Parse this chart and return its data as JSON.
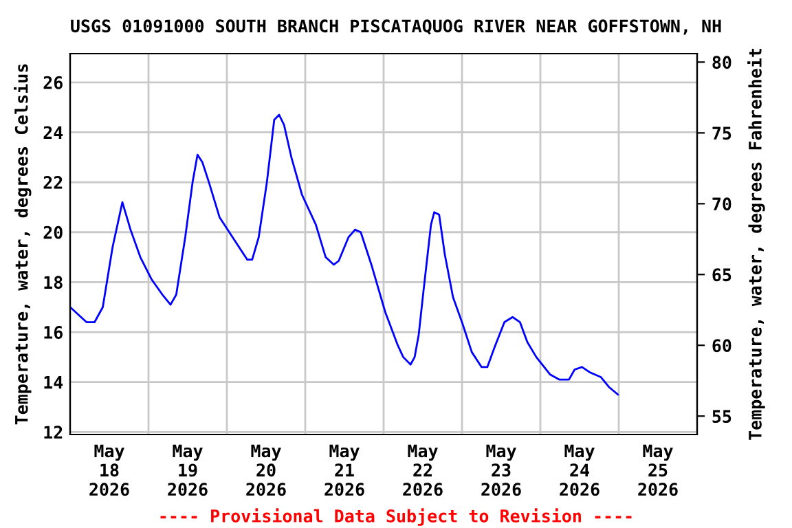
{
  "chart_data": {
    "type": "line",
    "title": "USGS 01091000 SOUTH BRANCH PISCATAQUOG RIVER NEAR GOFFSTOWN, NH",
    "ylabel": "Temperature, water, degrees Celsius",
    "y2label": "Temperature, water, degrees Fahrenheit",
    "annotations": [
      "---- Provisional Data Subject to Revision ----"
    ],
    "series": [
      {
        "color": "#0000ff",
        "x": [
          "2026-05-18T00:00",
          "2026-05-18T05:00",
          "2026-05-18T07:30",
          "2026-05-18T10:00",
          "2026-05-18T13:00",
          "2026-05-18T16:00",
          "2026-05-18T18:30",
          "2026-05-18T21:30",
          "2026-05-19T01:00",
          "2026-05-19T04:15",
          "2026-05-19T06:45",
          "2026-05-19T08:30",
          "2026-05-19T11:15",
          "2026-05-19T13:30",
          "2026-05-19T15:00",
          "2026-05-19T16:30",
          "2026-05-19T18:30",
          "2026-05-19T21:45",
          "2026-05-20T02:15",
          "2026-05-20T06:15",
          "2026-05-20T07:45",
          "2026-05-20T09:45",
          "2026-05-20T12:15",
          "2026-05-20T14:30",
          "2026-05-20T16:00",
          "2026-05-20T17:30",
          "2026-05-20T19:45",
          "2026-05-20T23:00",
          "2026-05-21T03:15",
          "2026-05-21T06:15",
          "2026-05-21T08:45",
          "2026-05-21T10:15",
          "2026-05-21T13:15",
          "2026-05-21T15:15",
          "2026-05-21T17:00",
          "2026-05-21T20:15",
          "2026-05-22T00:30",
          "2026-05-22T04:15",
          "2026-05-22T06:00",
          "2026-05-22T08:15",
          "2026-05-22T09:30",
          "2026-05-22T10:45",
          "2026-05-22T12:15",
          "2026-05-22T14:30",
          "2026-05-22T15:30",
          "2026-05-22T17:00",
          "2026-05-22T18:45",
          "2026-05-22T21:15",
          "2026-05-23T00:15",
          "2026-05-23T03:00",
          "2026-05-23T06:00",
          "2026-05-23T07:45",
          "2026-05-23T10:00",
          "2026-05-23T13:00",
          "2026-05-23T15:30",
          "2026-05-23T17:45",
          "2026-05-23T20:00",
          "2026-05-23T22:45",
          "2026-05-24T03:00",
          "2026-05-24T05:45",
          "2026-05-24T08:45",
          "2026-05-24T10:30",
          "2026-05-24T12:45",
          "2026-05-24T15:00",
          "2026-05-24T18:30",
          "2026-05-24T21:00",
          "2026-05-24T23:45"
        ],
        "values": [
          17.0,
          16.4,
          16.4,
          17.0,
          19.4,
          21.2,
          20.1,
          19.0,
          18.1,
          17.5,
          17.1,
          17.5,
          19.8,
          22.0,
          23.1,
          22.8,
          22.0,
          20.6,
          19.7,
          18.9,
          18.9,
          19.8,
          22.0,
          24.5,
          24.7,
          24.3,
          23.0,
          21.5,
          20.3,
          19.0,
          18.7,
          18.85,
          19.8,
          20.1,
          20.0,
          18.7,
          16.8,
          15.5,
          15.0,
          14.7,
          15.0,
          15.9,
          17.7,
          20.3,
          20.8,
          20.7,
          19.1,
          17.4,
          16.3,
          15.2,
          14.6,
          14.6,
          15.4,
          16.4,
          16.6,
          16.4,
          15.6,
          15.0,
          14.3,
          14.1,
          14.1,
          14.5,
          14.6,
          14.4,
          14.2,
          13.8,
          13.5
        ]
      }
    ],
    "xlim": [
      "2026-05-18T00:00",
      "2026-05-26T00:00"
    ],
    "xticks": [
      {
        "value": "2026-05-19T00:00",
        "label": null
      },
      {
        "value": "2026-05-20T00:00",
        "label": null
      },
      {
        "value": "2026-05-21T00:00",
        "label": null
      },
      {
        "value": "2026-05-22T00:00",
        "label": null
      },
      {
        "value": "2026-05-23T00:00",
        "label": null
      },
      {
        "value": "2026-05-24T00:00",
        "label": null
      },
      {
        "value": "2026-05-25T00:00",
        "label": null
      },
      {
        "value": "2026-05-18T12:00",
        "label": "May\n18\n2026"
      },
      {
        "value": "2026-05-19T12:00",
        "label": "May\n19\n2026"
      },
      {
        "value": "2026-05-20T12:00",
        "label": "May\n20\n2026"
      },
      {
        "value": "2026-05-21T12:00",
        "label": "May\n21\n2026"
      },
      {
        "value": "2026-05-22T12:00",
        "label": "May\n22\n2026"
      },
      {
        "value": "2026-05-23T12:00",
        "label": "May\n23\n2026"
      },
      {
        "value": "2026-05-24T12:00",
        "label": "May\n24\n2026"
      },
      {
        "value": "2026-05-25T12:00",
        "label": "May\n25\n2026"
      }
    ],
    "ylim": [
      11.9,
      27.15
    ],
    "yticks": [
      12,
      14,
      16,
      18,
      20,
      22,
      24,
      26
    ],
    "y2lim": [
      53.7,
      80.6
    ],
    "y2ticks": [
      55,
      60,
      65,
      70,
      75,
      80
    ],
    "grid": true
  }
}
